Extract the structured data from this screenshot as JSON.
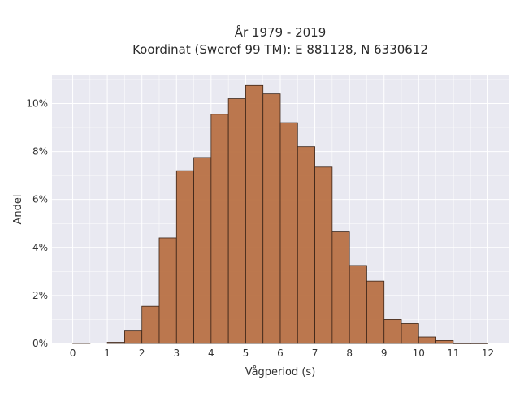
{
  "chart_data": {
    "type": "bar",
    "title_line1": "År 1979 - 2019",
    "title_line2": "Koordinat (Sweref 99 TM): E 881128, N 6330612",
    "xlabel": "Vågperiod (s)",
    "ylabel": "Andel",
    "xlim": [
      -0.6,
      12.6
    ],
    "ylim": [
      0,
      11.2
    ],
    "x_ticks": [
      0,
      1,
      2,
      3,
      4,
      5,
      6,
      7,
      8,
      9,
      10,
      11,
      12
    ],
    "y_ticks": [
      0,
      2,
      4,
      6,
      8,
      10
    ],
    "y_tick_labels": [
      "0%",
      "2%",
      "4%",
      "6%",
      "8%",
      "10%"
    ],
    "bin_width": 0.5,
    "bins": [
      {
        "start": 0.0,
        "value": 0.02
      },
      {
        "start": 0.5,
        "value": 0.0
      },
      {
        "start": 1.0,
        "value": 0.05
      },
      {
        "start": 1.5,
        "value": 0.52
      },
      {
        "start": 2.0,
        "value": 1.55
      },
      {
        "start": 2.5,
        "value": 4.4
      },
      {
        "start": 3.0,
        "value": 7.2
      },
      {
        "start": 3.5,
        "value": 7.75
      },
      {
        "start": 4.0,
        "value": 9.55
      },
      {
        "start": 4.5,
        "value": 10.2
      },
      {
        "start": 5.0,
        "value": 10.75
      },
      {
        "start": 5.5,
        "value": 10.4
      },
      {
        "start": 6.0,
        "value": 9.2
      },
      {
        "start": 6.5,
        "value": 8.2
      },
      {
        "start": 7.0,
        "value": 7.35
      },
      {
        "start": 7.5,
        "value": 4.65
      },
      {
        "start": 8.0,
        "value": 3.25
      },
      {
        "start": 8.5,
        "value": 2.6
      },
      {
        "start": 9.0,
        "value": 1.0
      },
      {
        "start": 9.5,
        "value": 0.83
      },
      {
        "start": 10.0,
        "value": 0.27
      },
      {
        "start": 10.5,
        "value": 0.12
      },
      {
        "start": 11.0,
        "value": 0.01
      },
      {
        "start": 11.5,
        "value": 0.01
      }
    ],
    "grid": true,
    "colors": {
      "bar_fill": "#b87144",
      "bar_edge": "#3a2418",
      "plot_background": "#e9e9f1",
      "grid": "#ffffff"
    }
  }
}
